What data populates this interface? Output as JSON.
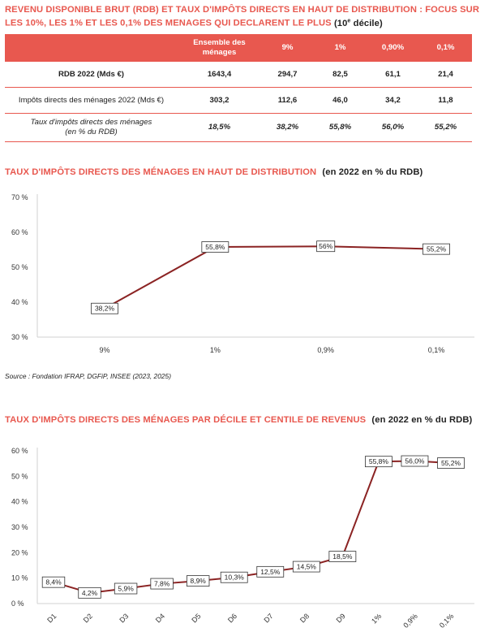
{
  "heading1": {
    "text": "REVENU DISPONIBLE BRUT (RDB) ET TAUX D'IMPÔTS DIRECTS EN HAUT DE DISTRIBUTION : FOCUS SUR LES 10%, LES 1% ET LES 0,1% DES MENAGES QUI DECLARENT LE PLUS",
    "suffix_pre": "(10",
    "suffix_sup": "e",
    "suffix_post": " décile)"
  },
  "table": {
    "headers": [
      "",
      "Ensemble des ménages",
      "9%",
      "1%",
      "0,90%",
      "0,1%"
    ],
    "rows": [
      {
        "label": "RDB 2022 (Mds €)",
        "values": [
          "1643,4",
          "294,7",
          "82,5",
          "61,1",
          "21,4"
        ]
      },
      {
        "label": "Impôts directs des ménages 2022 (Mds €)",
        "values": [
          "303,2",
          "112,6",
          "46,0",
          "34,2",
          "11,8"
        ]
      },
      {
        "label_line1": "Taux d'impôts directs des ménages",
        "label_line2": "(en % du RDB)",
        "values": [
          "18,5%",
          "38,2%",
          "55,8%",
          "56,0%",
          "55,2%"
        ]
      }
    ]
  },
  "chart1_heading": {
    "title": "TAUX D'IMPÔTS DIRECTS DES MÉNAGES EN HAUT DE DISTRIBUTION",
    "sub": "(en 2022 en % du RDB)"
  },
  "source": "Source : Fondation IFRAP, DGFiP, INSEE (2023, 2025)",
  "chart2_heading": {
    "title": "TAUX D'IMPÔTS DIRECTS DES MÉNAGES PAR DÉCILE ET CENTILE DE REVENUS",
    "sub": "(en 2022 en % du RDB)"
  },
  "colors": {
    "accent": "#e8584f",
    "line": "#8b2323",
    "axis": "#d0d0d0"
  },
  "chart_data": [
    {
      "type": "line",
      "title": "TAUX D'IMPÔTS DIRECTS DES MÉNAGES EN HAUT DE DISTRIBUTION",
      "subtitle": "(en 2022 en % du RDB)",
      "categories": [
        "9%",
        "1%",
        "0,9%",
        "0,1%"
      ],
      "values": [
        38.2,
        55.8,
        56,
        55.2
      ],
      "labels": [
        "38,2%",
        "55,8%",
        "56%",
        "55,2%"
      ],
      "yticks": [
        "30 %",
        "40 %",
        "50 %",
        "60 %",
        "70 %"
      ],
      "ylim": [
        30,
        70
      ],
      "grid": false
    },
    {
      "type": "line",
      "title": "TAUX D'IMPÔTS DIRECTS DES MÉNAGES PAR DÉCILE ET CENTILE DE REVENUS",
      "subtitle": "(en 2022 en % du RDB)",
      "categories": [
        "D1",
        "D2",
        "D3",
        "D4",
        "D5",
        "D6",
        "D7",
        "D8",
        "D9",
        "1%",
        "0,9%",
        "0,1%"
      ],
      "values": [
        8.4,
        4.2,
        5.9,
        7.8,
        8.9,
        10.3,
        12.5,
        14.5,
        18.5,
        55.8,
        56.0,
        55.2
      ],
      "labels": [
        "8,4%",
        "4,2%",
        "5,9%",
        "7,8%",
        "8,9%",
        "10,3%",
        "12,5%",
        "14,5%",
        "18,5%",
        "55,8%",
        "56,0%",
        "55,2%"
      ],
      "yticks": [
        "0 %",
        "10 %",
        "20 %",
        "30 %",
        "40 %",
        "50 %",
        "60 %"
      ],
      "ylim": [
        0,
        60
      ],
      "grid": false
    }
  ]
}
